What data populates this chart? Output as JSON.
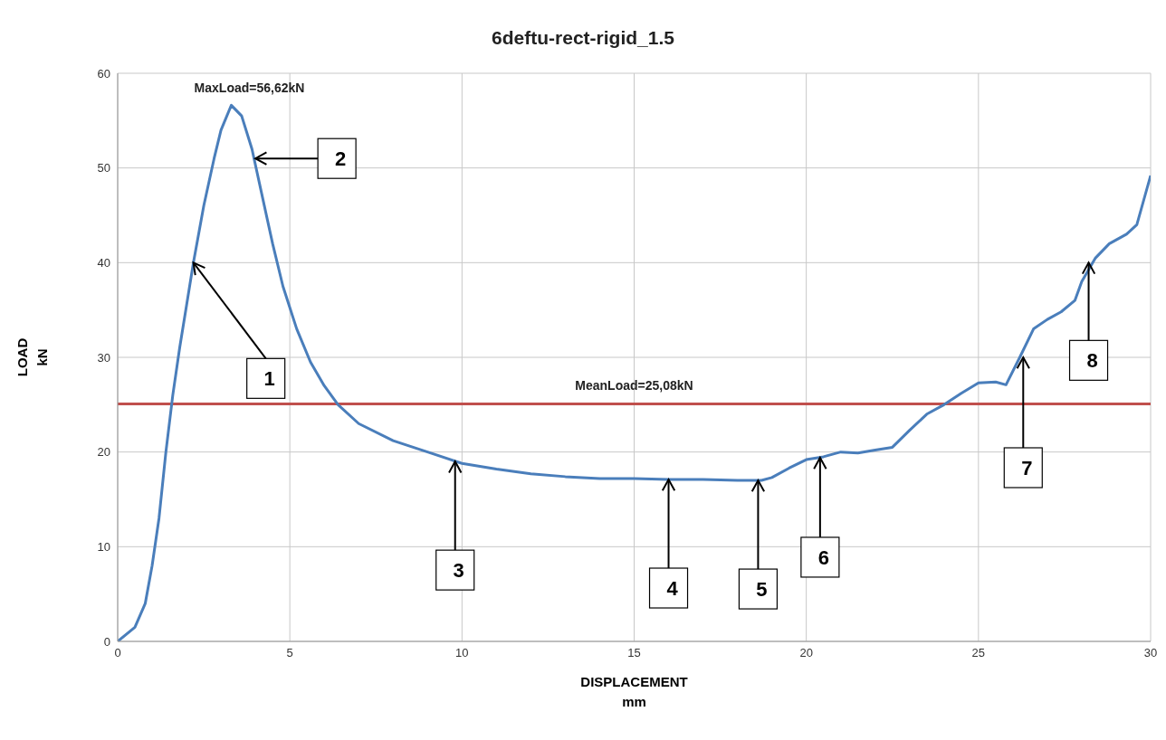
{
  "chart_data": {
    "type": "line",
    "title": "6deftu-rect-rigid_1.5",
    "xlabel": "DISPLACEMENT\nmm",
    "ylabel": "LOAD\nkN",
    "x": [
      0,
      0.5,
      0.8,
      1.0,
      1.2,
      1.4,
      1.6,
      1.8,
      2.0,
      2.2,
      2.5,
      2.8,
      3.0,
      3.3,
      3.6,
      3.9,
      4.2,
      4.5,
      4.8,
      5.2,
      5.6,
      6.0,
      6.4,
      7,
      8,
      9,
      10,
      11,
      12,
      13,
      14,
      15,
      16,
      17,
      18,
      18.7,
      19,
      19.5,
      20,
      20.5,
      21,
      21.5,
      22,
      22.5,
      23,
      23.5,
      24,
      24.5,
      25,
      25.5,
      25.8,
      26.2,
      26.6,
      27,
      27.4,
      27.8,
      28,
      28.4,
      28.8,
      29.3,
      29.6,
      30
    ],
    "series": [
      {
        "color": "#4a7ebb",
        "values": [
          0,
          1.5,
          4,
          8,
          13,
          20,
          26,
          31,
          35.5,
          40,
          46,
          51,
          54,
          56.62,
          55.5,
          52,
          47,
          42,
          37.5,
          33,
          29.5,
          27,
          25,
          23,
          21.2,
          20,
          18.8,
          18.2,
          17.7,
          17.4,
          17.2,
          17.2,
          17.1,
          17.1,
          17.0,
          17.0,
          17.3,
          18.3,
          19.2,
          19.5,
          20,
          19.9,
          20.2,
          20.5,
          22.3,
          24,
          25,
          26.2,
          27.3,
          27.4,
          27.1,
          30,
          33,
          34,
          34.8,
          36,
          38,
          40.5,
          42,
          43,
          44,
          49.2
        ]
      }
    ],
    "xlim": [
      0,
      30
    ],
    "xticks": [
      0,
      5,
      10,
      15,
      20,
      25,
      30
    ],
    "ylim": [
      0,
      60
    ],
    "yticks": [
      0,
      10,
      20,
      30,
      40,
      50,
      60
    ],
    "grid": true,
    "marker": "none",
    "line_style": "solid",
    "ref_lines": [
      {
        "axis": "y",
        "value": 25.08,
        "label": "MeanLoad=25,08kN",
        "color": "#c0504d"
      }
    ],
    "annotations": [
      {
        "text": "MaxLoad=56,62kN",
        "x": 3.3,
        "y": 56.62
      },
      {
        "text": "1",
        "x": 2.2,
        "y": 40
      },
      {
        "text": "2",
        "x": 4.0,
        "y": 51
      },
      {
        "text": "3",
        "x": 9.8,
        "y": 19
      },
      {
        "text": "4",
        "x": 16,
        "y": 17.1
      },
      {
        "text": "5",
        "x": 18.6,
        "y": 17
      },
      {
        "text": "6",
        "x": 20.4,
        "y": 19.4
      },
      {
        "text": "7",
        "x": 26.3,
        "y": 30
      },
      {
        "text": "8",
        "x": 28.2,
        "y": 40
      }
    ]
  }
}
